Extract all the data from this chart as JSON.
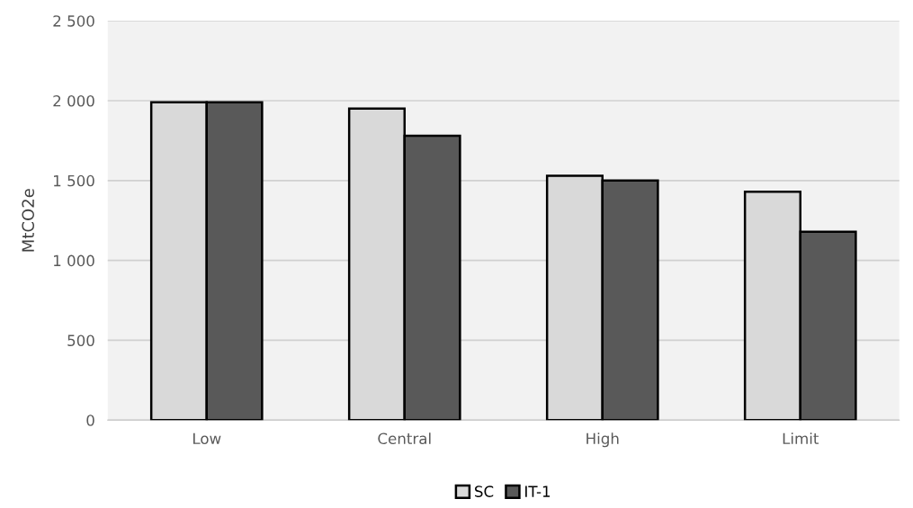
{
  "chart_data": {
    "type": "bar",
    "ylabel": "MtCO2e",
    "categories": [
      "Low",
      "Central",
      "High",
      "Limit"
    ],
    "series": [
      {
        "name": "SC",
        "color": "#d9d9d9",
        "values": [
          1990,
          1950,
          1530,
          1430
        ]
      },
      {
        "name": "IT-1",
        "color": "#595959",
        "values": [
          1990,
          1780,
          1500,
          1180
        ]
      }
    ],
    "ylim": [
      0,
      2500
    ],
    "yticks": [
      {
        "value": 0,
        "label": "0"
      },
      {
        "value": 500,
        "label": "500"
      },
      {
        "value": 1000,
        "label": "1 000"
      },
      {
        "value": 1500,
        "label": "1 500"
      },
      {
        "value": 2000,
        "label": "2 000"
      },
      {
        "value": 2500,
        "label": "2 500"
      }
    ],
    "grid": "y",
    "legend": "bottom"
  }
}
